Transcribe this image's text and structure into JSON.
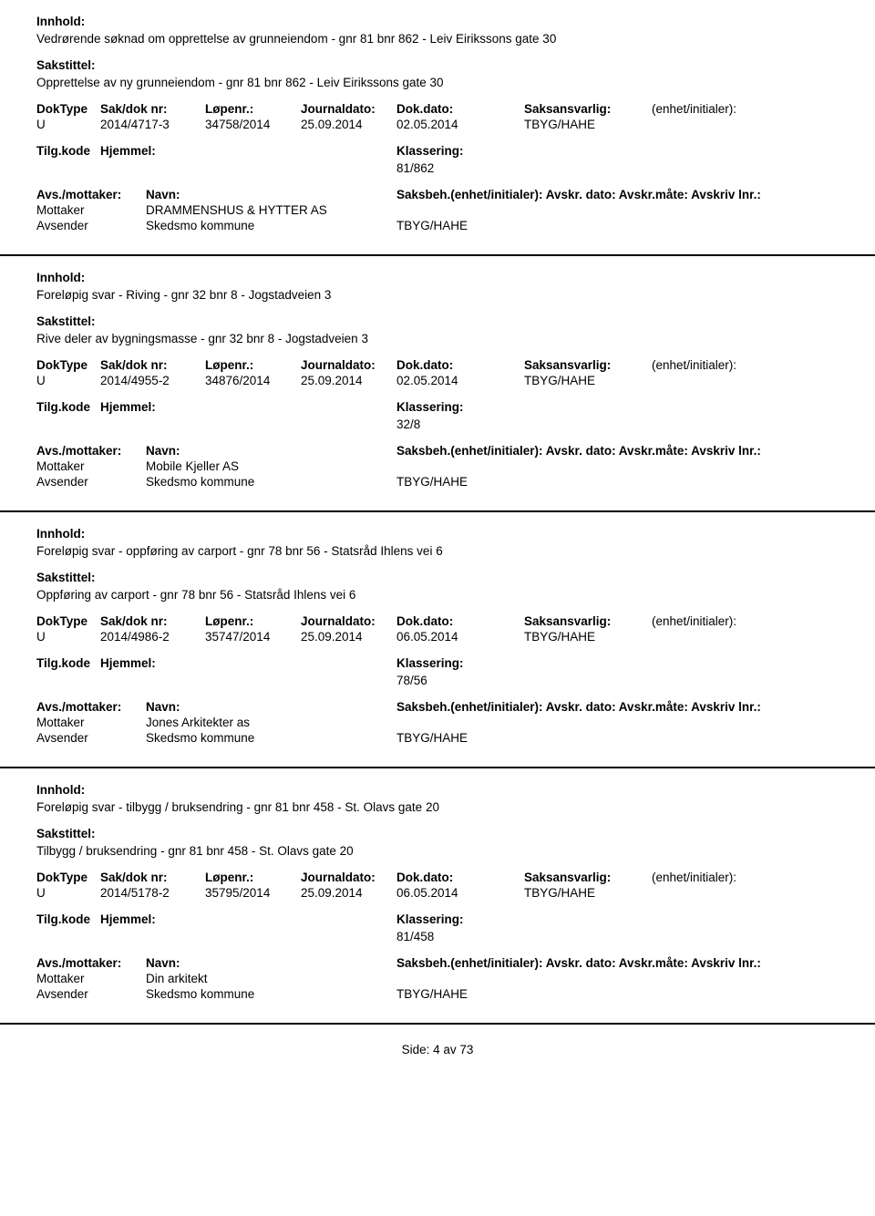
{
  "labels": {
    "innhold": "Innhold:",
    "sakstittel": "Sakstittel:",
    "doktype": "DokType",
    "sakdoknr": "Sak/dok nr:",
    "lopenr": "Løpenr.:",
    "journaldato": "Journaldato:",
    "dokdato": "Dok.dato:",
    "saksansvarlig": "Saksansvarlig:",
    "enhet": "(enhet/initialer):",
    "tilgkode": "Tilg.kode",
    "hjemmel": "Hjemmel:",
    "klassering": "Klassering:",
    "avsmottaker": "Avs./mottaker:",
    "navn": "Navn:",
    "saksbeh_full": "Saksbeh.(enhet/initialer): Avskr. dato:  Avskr.måte:  Avskriv lnr.:",
    "mottaker": "Mottaker",
    "avsender": "Avsender"
  },
  "entries": [
    {
      "innhold": "Vedrørende søknad om opprettelse av grunneiendom - gnr 81 bnr 862 - Leiv Eirikssons gate 30",
      "sakstittel": "Opprettelse av ny grunneiendom - gnr 81 bnr 862 - Leiv Eirikssons gate 30",
      "doktype": "U",
      "sakdoknr": "2014/4717-3",
      "lopenr": "34758/2014",
      "journaldato": "25.09.2014",
      "dokdato": "02.05.2014",
      "saksansvarlig": "TBYG/HAHE",
      "klassering": "81/862",
      "mottaker_name": "DRAMMENSHUS & HYTTER AS",
      "avsender_name": "Skedsmo kommune",
      "avsender_unit": "TBYG/HAHE"
    },
    {
      "innhold": "Foreløpig svar - Riving - gnr 32 bnr 8 - Jogstadveien 3",
      "sakstittel": "Rive deler av bygningsmasse - gnr 32 bnr 8 - Jogstadveien 3",
      "doktype": "U",
      "sakdoknr": "2014/4955-2",
      "lopenr": "34876/2014",
      "journaldato": "25.09.2014",
      "dokdato": "02.05.2014",
      "saksansvarlig": "TBYG/HAHE",
      "klassering": "32/8",
      "mottaker_name": "Mobile Kjeller AS",
      "avsender_name": "Skedsmo kommune",
      "avsender_unit": "TBYG/HAHE"
    },
    {
      "innhold": "Foreløpig svar - oppføring av carport - gnr 78 bnr 56 - Statsråd Ihlens vei 6",
      "sakstittel": "Oppføring av carport - gnr 78 bnr 56 - Statsråd Ihlens vei 6",
      "doktype": "U",
      "sakdoknr": "2014/4986-2",
      "lopenr": "35747/2014",
      "journaldato": "25.09.2014",
      "dokdato": "06.05.2014",
      "saksansvarlig": "TBYG/HAHE",
      "klassering": "78/56",
      "mottaker_name": "Jones Arkitekter as",
      "avsender_name": "Skedsmo kommune",
      "avsender_unit": "TBYG/HAHE"
    },
    {
      "innhold": "Foreløpig svar - tilbygg / bruksendring - gnr 81 bnr 458 - St. Olavs gate 20",
      "sakstittel": "Tilbygg / bruksendring - gnr 81 bnr 458 - St. Olavs gate 20",
      "doktype": "U",
      "sakdoknr": "2014/5178-2",
      "lopenr": "35795/2014",
      "journaldato": "25.09.2014",
      "dokdato": "06.05.2014",
      "saksansvarlig": "TBYG/HAHE",
      "klassering": "81/458",
      "mottaker_name": "Din arkitekt",
      "avsender_name": "Skedsmo kommune",
      "avsender_unit": "TBYG/HAHE"
    }
  ],
  "footer": "Side:  4 av 73"
}
